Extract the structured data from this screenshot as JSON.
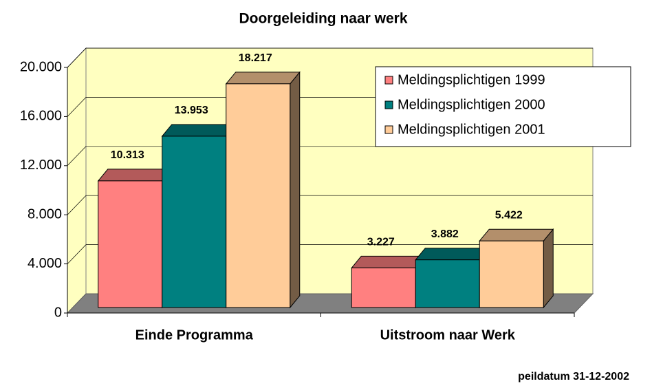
{
  "chart_data": {
    "type": "bar3d",
    "title": "Doorgeleiding naar werk",
    "categories": [
      "Einde Programma",
      "Uitstroom naar Werk"
    ],
    "series": [
      {
        "name": "Meldingsplichtigen 1999",
        "color": "#ff8080",
        "values": [
          10313,
          3227
        ],
        "value_labels": [
          "10.313",
          "3.227"
        ]
      },
      {
        "name": "Meldingsplichtigen 2000",
        "color": "#008080",
        "values": [
          13953,
          3882
        ],
        "value_labels": [
          "13.953",
          "3.882"
        ]
      },
      {
        "name": "Meldingsplichtigen 2001",
        "color": "#ffcc99",
        "values": [
          18217,
          5422
        ],
        "value_labels": [
          "18.217",
          "5.422"
        ]
      }
    ],
    "ylim": [
      0,
      20000
    ],
    "yticks": [
      0,
      {
        "value": 4000,
        "label": "4.000"
      },
      {
        "value": 8000,
        "label": "8.000"
      },
      {
        "value": 12000,
        "label": "12.000"
      },
      {
        "value": 16000,
        "label": "16.000"
      },
      {
        "value": 20000,
        "label": "20.000"
      }
    ],
    "grid": true,
    "legend": "upper right",
    "annotation": "peildatum 31-12-2002"
  }
}
